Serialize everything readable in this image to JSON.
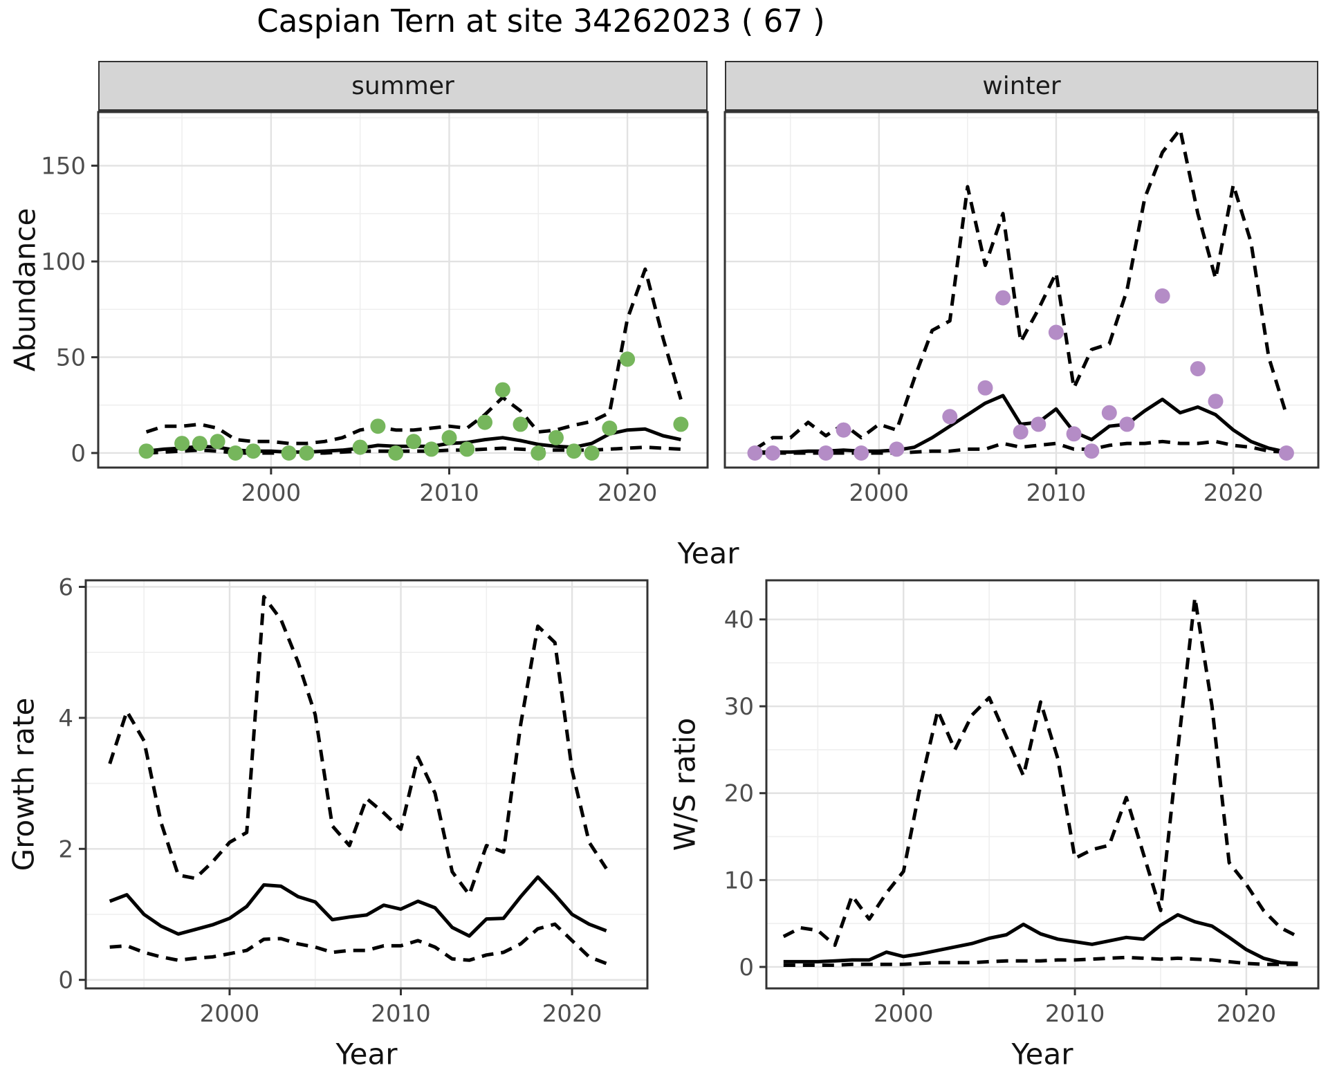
{
  "title": "Caspian Tern at site 34262023 ( 67 )",
  "facets": {
    "summer": "summer",
    "winter": "winter"
  },
  "axes": {
    "x_top": "Year",
    "x_growth": "Year",
    "x_ws": "Year",
    "y_abundance": "Abundance",
    "y_growth": "Growth rate",
    "y_ws": "W/S ratio"
  },
  "colors": {
    "summer_point": "#76b65c",
    "winter_point": "#b48cc6",
    "line": "#000000",
    "strip_bg": "#d5d5d5",
    "grid_major": "#e2e2e2",
    "grid_minor": "#efefef",
    "tick_text": "#4d4d4d",
    "panel_border": "#333333"
  },
  "chart_data": [
    {
      "id": "abundance_summer",
      "type": "line",
      "strip": "summer",
      "xlabel": "Year",
      "ylabel": "Abundance",
      "xlim": [
        1990.3,
        2024.5
      ],
      "ylim": [
        -7.6,
        178
      ],
      "x_ticks": [
        2000,
        2010,
        2020
      ],
      "x_minor": [
        1995,
        2005,
        2015
      ],
      "y_ticks": [
        0,
        50,
        100,
        150
      ],
      "y_minor": [
        25,
        75,
        125,
        175
      ],
      "years": [
        1993,
        1994,
        1995,
        1996,
        1997,
        1998,
        1999,
        2000,
        2001,
        2002,
        2003,
        2004,
        2005,
        2006,
        2007,
        2008,
        2009,
        2010,
        2011,
        2012,
        2013,
        2014,
        2015,
        2016,
        2017,
        2018,
        2019,
        2020,
        2021,
        2022,
        2023
      ],
      "median": [
        1,
        2,
        2.5,
        3.5,
        3,
        1.5,
        1,
        1,
        0.5,
        0.5,
        1,
        1.5,
        2.5,
        4,
        3.5,
        3.5,
        3.5,
        5,
        5.5,
        7,
        8,
        6.5,
        4.5,
        3.5,
        3,
        5,
        10,
        12,
        12.5,
        9,
        7
      ],
      "lower": [
        0,
        0.5,
        1,
        1.5,
        1,
        0,
        0,
        0,
        0,
        0,
        0,
        0.5,
        1,
        1,
        1,
        1,
        1,
        1.5,
        1.5,
        2,
        2.5,
        2,
        1.5,
        1.5,
        1.5,
        1.5,
        2,
        2.5,
        3,
        2.5,
        2
      ],
      "upper": [
        11,
        14,
        14,
        15,
        13,
        7,
        6,
        6,
        5,
        5,
        6,
        8,
        12,
        13.5,
        12,
        12,
        13,
        14,
        13,
        20,
        29,
        22,
        11,
        12,
        14.5,
        16.5,
        21,
        70,
        96,
        60,
        28
      ],
      "points": {
        "color_key": "summer_point",
        "years": [
          1993,
          1995,
          1996,
          1997,
          1998,
          1999,
          2001,
          2002,
          2005,
          2006,
          2007,
          2008,
          2009,
          2010,
          2011,
          2012,
          2013,
          2014,
          2015,
          2016,
          2017,
          2018,
          2019,
          2020,
          2023
        ],
        "values": [
          1,
          5,
          5,
          6,
          0,
          1,
          0,
          0,
          3,
          14,
          0,
          6,
          2,
          8,
          2,
          16,
          33,
          15,
          0,
          8,
          1,
          0,
          13,
          49,
          15
        ]
      }
    },
    {
      "id": "abundance_winter",
      "type": "line",
      "strip": "winter",
      "xlabel": "Year",
      "ylabel": "Abundance",
      "xlim": [
        1991.3,
        2024.8
      ],
      "ylim": [
        -7.6,
        178
      ],
      "x_ticks": [
        2000,
        2010,
        2020
      ],
      "x_minor": [
        1995,
        2005,
        2015
      ],
      "y_ticks": [
        0,
        50,
        100,
        150
      ],
      "y_minor": [
        25,
        75,
        125,
        175
      ],
      "years": [
        1993,
        1994,
        1995,
        1996,
        1997,
        1998,
        1999,
        2000,
        2001,
        2002,
        2003,
        2004,
        2005,
        2006,
        2007,
        2008,
        2009,
        2010,
        2011,
        2012,
        2013,
        2014,
        2015,
        2016,
        2017,
        2018,
        2019,
        2020,
        2021,
        2022,
        2023
      ],
      "median": [
        0.5,
        0.5,
        0.5,
        1,
        1,
        1.5,
        1,
        1,
        1.5,
        3,
        8,
        14,
        20,
        26,
        30,
        15,
        16,
        23,
        11,
        7,
        14,
        15,
        22,
        28,
        21,
        24,
        20,
        12,
        6,
        2.5,
        0.5
      ],
      "lower": [
        0,
        0,
        0,
        0,
        0,
        0,
        0,
        0,
        0,
        0.5,
        1,
        1,
        2,
        2,
        5,
        3,
        4,
        5,
        2,
        2,
        4,
        5,
        5,
        6,
        5,
        5,
        6,
        4,
        3,
        1,
        0.5
      ],
      "upper": [
        2,
        8,
        8,
        16,
        9,
        15,
        8,
        15,
        12,
        39,
        64,
        69,
        139,
        98,
        125,
        58,
        75,
        94,
        34,
        54,
        57,
        85,
        133,
        157,
        169,
        125,
        91,
        140,
        110,
        50,
        20
      ],
      "points": {
        "color_key": "winter_point",
        "years": [
          1993,
          1994,
          1997,
          1998,
          1999,
          2001,
          2004,
          2006,
          2007,
          2008,
          2009,
          2010,
          2011,
          2012,
          2013,
          2014,
          2016,
          2018,
          2019,
          2023
        ],
        "values": [
          0,
          0,
          0,
          12,
          0,
          2,
          19,
          34,
          81,
          11,
          15,
          63,
          10,
          1,
          21,
          15,
          82,
          44,
          27,
          0
        ]
      }
    },
    {
      "id": "growth_rate",
      "type": "line",
      "strip": "",
      "xlabel": "Year",
      "ylabel": "Growth rate",
      "xlim": [
        1991.6,
        2024.4
      ],
      "ylim": [
        -0.13,
        6.1
      ],
      "x_ticks": [
        2000,
        2010,
        2020
      ],
      "x_minor": [
        1995,
        2005,
        2015
      ],
      "y_ticks": [
        0,
        2,
        4,
        6
      ],
      "y_minor": [
        1,
        3,
        5
      ],
      "years": [
        1993,
        1994,
        1995,
        1996,
        1997,
        1998,
        1999,
        2000,
        2001,
        2002,
        2003,
        2004,
        2005,
        2006,
        2007,
        2008,
        2009,
        2010,
        2011,
        2012,
        2013,
        2014,
        2015,
        2016,
        2017,
        2018,
        2019,
        2020,
        2021,
        2022
      ],
      "median": [
        1.2,
        1.3,
        1.0,
        0.82,
        0.7,
        0.77,
        0.84,
        0.94,
        1.12,
        1.45,
        1.43,
        1.27,
        1.19,
        0.92,
        0.96,
        0.99,
        1.14,
        1.08,
        1.2,
        1.1,
        0.8,
        0.67,
        0.93,
        0.94,
        1.27,
        1.57,
        1.3,
        1.0,
        0.85,
        0.75
      ],
      "lower": [
        0.5,
        0.52,
        0.42,
        0.35,
        0.3,
        0.33,
        0.35,
        0.4,
        0.45,
        0.62,
        0.63,
        0.55,
        0.5,
        0.42,
        0.45,
        0.45,
        0.52,
        0.52,
        0.6,
        0.5,
        0.32,
        0.3,
        0.38,
        0.42,
        0.55,
        0.78,
        0.85,
        0.6,
        0.35,
        0.25
      ],
      "upper": [
        3.3,
        4.1,
        3.65,
        2.4,
        1.6,
        1.55,
        1.8,
        2.1,
        2.25,
        5.85,
        5.5,
        4.85,
        4.05,
        2.35,
        2.05,
        2.77,
        2.55,
        2.3,
        3.4,
        2.85,
        1.65,
        1.3,
        2.05,
        1.95,
        3.9,
        5.4,
        5.15,
        3.2,
        2.1,
        1.7
      ]
    },
    {
      "id": "ws_ratio",
      "type": "line",
      "strip": "",
      "xlabel": "Year",
      "ylabel": "W/S ratio",
      "xlim": [
        1992.0,
        2024.2
      ],
      "ylim": [
        -2.47,
        44.5
      ],
      "x_ticks": [
        2000,
        2010,
        2020
      ],
      "x_minor": [
        1995,
        2005,
        2015
      ],
      "y_ticks": [
        0,
        10,
        20,
        30,
        40
      ],
      "y_minor": [
        5,
        15,
        25,
        35
      ],
      "years": [
        1993,
        1994,
        1995,
        1996,
        1997,
        1998,
        1999,
        2000,
        2001,
        2002,
        2003,
        2004,
        2005,
        2006,
        2007,
        2008,
        2009,
        2010,
        2011,
        2012,
        2013,
        2014,
        2015,
        2016,
        2017,
        2018,
        2019,
        2020,
        2021,
        2022,
        2023
      ],
      "median": [
        0.6,
        0.6,
        0.6,
        0.7,
        0.8,
        0.8,
        1.7,
        1.2,
        1.5,
        1.9,
        2.3,
        2.7,
        3.3,
        3.7,
        4.9,
        3.8,
        3.2,
        2.9,
        2.6,
        3.0,
        3.4,
        3.2,
        4.8,
        6.0,
        5.2,
        4.7,
        3.4,
        2.0,
        1.0,
        0.5,
        0.4
      ],
      "lower": [
        0.2,
        0.2,
        0.2,
        0.2,
        0.3,
        0.3,
        0.3,
        0.3,
        0.4,
        0.5,
        0.5,
        0.5,
        0.6,
        0.7,
        0.7,
        0.7,
        0.8,
        0.8,
        0.9,
        1.0,
        1.1,
        1.0,
        0.9,
        1.0,
        0.9,
        0.8,
        0.6,
        0.4,
        0.3,
        0.3,
        0.3
      ],
      "upper": [
        3.5,
        4.5,
        4.2,
        2.5,
        8.2,
        5.5,
        8.5,
        11,
        21,
        29.5,
        25,
        29,
        31,
        26.5,
        22,
        30.5,
        24,
        12.5,
        13.5,
        14,
        19.5,
        13,
        6.5,
        25,
        42.5,
        30,
        12,
        9.5,
        6.5,
        4.5,
        3.5
      ]
    }
  ]
}
